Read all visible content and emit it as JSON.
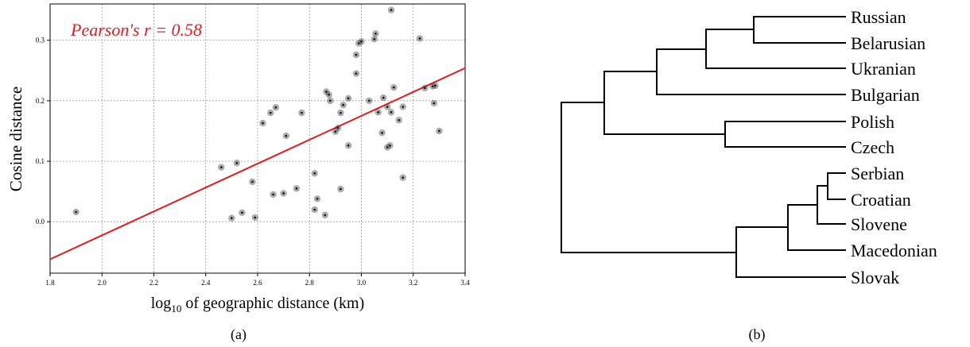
{
  "chart_data": [
    {
      "type": "scatter",
      "annotation": "Pearson's r = 0.58",
      "xlabel_main": "log",
      "xlabel_sub": "10",
      "xlabel_rest": " of geographic distance (km)",
      "ylabel": "Cosine distance",
      "xlim": [
        1.8,
        3.4
      ],
      "ylim": [
        -0.085,
        0.36
      ],
      "x_ticks": [
        1.8,
        2.0,
        2.2,
        2.4,
        2.6,
        2.8,
        3.0,
        3.2,
        3.4
      ],
      "x_tick_labels": [
        "1.8",
        "2.0",
        "2.2",
        "2.4",
        "2.6",
        "2.8",
        "3.0",
        "3.2",
        "3.4"
      ],
      "y_ticks": [
        0.0,
        0.1,
        0.2,
        0.3
      ],
      "y_tick_labels": [
        "0.0",
        "0.1",
        "0.2",
        "0.3"
      ],
      "grid": true,
      "regression_line": {
        "x": [
          1.8,
          3.4
        ],
        "y": [
          -0.062,
          0.254
        ]
      },
      "points": [
        {
          "x": 1.9,
          "y": 0.016
        },
        {
          "x": 2.46,
          "y": 0.09
        },
        {
          "x": 2.5,
          "y": 0.006
        },
        {
          "x": 2.52,
          "y": 0.097
        },
        {
          "x": 2.54,
          "y": 0.015
        },
        {
          "x": 2.58,
          "y": 0.066
        },
        {
          "x": 2.59,
          "y": 0.007
        },
        {
          "x": 2.62,
          "y": 0.163
        },
        {
          "x": 2.65,
          "y": 0.18
        },
        {
          "x": 2.66,
          "y": 0.045
        },
        {
          "x": 2.67,
          "y": 0.189
        },
        {
          "x": 2.7,
          "y": 0.047
        },
        {
          "x": 2.71,
          "y": 0.142
        },
        {
          "x": 2.75,
          "y": 0.055
        },
        {
          "x": 2.77,
          "y": 0.18
        },
        {
          "x": 2.82,
          "y": 0.02
        },
        {
          "x": 2.82,
          "y": 0.08
        },
        {
          "x": 2.83,
          "y": 0.038
        },
        {
          "x": 2.86,
          "y": 0.011
        },
        {
          "x": 2.865,
          "y": 0.215
        },
        {
          "x": 2.875,
          "y": 0.21
        },
        {
          "x": 2.88,
          "y": 0.2
        },
        {
          "x": 2.9,
          "y": 0.149
        },
        {
          "x": 2.91,
          "y": 0.155
        },
        {
          "x": 2.92,
          "y": 0.18
        },
        {
          "x": 2.92,
          "y": 0.054
        },
        {
          "x": 2.93,
          "y": 0.193
        },
        {
          "x": 2.95,
          "y": 0.126
        },
        {
          "x": 2.95,
          "y": 0.204
        },
        {
          "x": 2.98,
          "y": 0.245
        },
        {
          "x": 2.98,
          "y": 0.276
        },
        {
          "x": 2.99,
          "y": 0.295
        },
        {
          "x": 3.0,
          "y": 0.298
        },
        {
          "x": 3.03,
          "y": 0.2
        },
        {
          "x": 3.05,
          "y": 0.302
        },
        {
          "x": 3.055,
          "y": 0.311
        },
        {
          "x": 3.065,
          "y": 0.181
        },
        {
          "x": 3.08,
          "y": 0.147
        },
        {
          "x": 3.085,
          "y": 0.205
        },
        {
          "x": 3.1,
          "y": 0.123
        },
        {
          "x": 3.1,
          "y": 0.19
        },
        {
          "x": 3.11,
          "y": 0.126
        },
        {
          "x": 3.115,
          "y": 0.181
        },
        {
          "x": 3.115,
          "y": 0.35
        },
        {
          "x": 3.125,
          "y": 0.222
        },
        {
          "x": 3.145,
          "y": 0.168
        },
        {
          "x": 3.16,
          "y": 0.19
        },
        {
          "x": 3.16,
          "y": 0.073
        },
        {
          "x": 3.225,
          "y": 0.303
        },
        {
          "x": 3.245,
          "y": 0.221
        },
        {
          "x": 3.275,
          "y": 0.224
        },
        {
          "x": 3.28,
          "y": 0.196
        },
        {
          "x": 3.285,
          "y": 0.225
        },
        {
          "x": 3.3,
          "y": 0.15
        }
      ],
      "colors": {
        "points": "#444444",
        "line": "#e8191c",
        "annotation": "#e8191c",
        "grid": "#8a8a8a"
      },
      "caption": "(a)"
    },
    {
      "type": "dendrogram",
      "leaves": [
        "Russian",
        "Belarusian",
        "Ukranian",
        "Bulgarian",
        "Polish",
        "Czech",
        "Serbian",
        "Croatian",
        "Slovene",
        "Macedonian",
        "Slovak"
      ],
      "caption": "(b)"
    }
  ]
}
